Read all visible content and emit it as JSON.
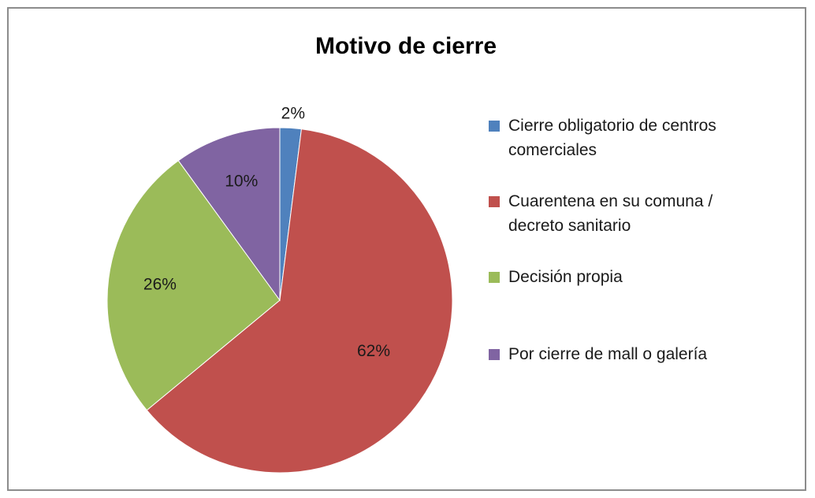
{
  "chart_data": {
    "type": "pie",
    "title": "Motivo de cierre",
    "start_angle_deg": 0,
    "direction": "clockwise",
    "legend_position": "right",
    "slices": [
      {
        "label": "Cierre obligatorio de centros comerciales",
        "legend_lines": [
          "Cierre obligatorio de centros",
          "comerciales"
        ],
        "value": 2,
        "data_label": "2%",
        "color": "#4F81BD"
      },
      {
        "label": "Cuarentena en su comuna / decreto sanitario",
        "legend_lines": [
          "Cuarentena en su comuna /",
          "decreto sanitario"
        ],
        "value": 62,
        "data_label": "62%",
        "color": "#C0504D"
      },
      {
        "label": "Decisión propia",
        "legend_lines": [
          "Decisión propia"
        ],
        "value": 26,
        "data_label": "26%",
        "color": "#9BBB59"
      },
      {
        "label": "Por cierre de mall o galería",
        "legend_lines": [
          "Por cierre de mall o galería"
        ],
        "value": 10,
        "data_label": "10%",
        "color": "#8064A2"
      }
    ]
  }
}
